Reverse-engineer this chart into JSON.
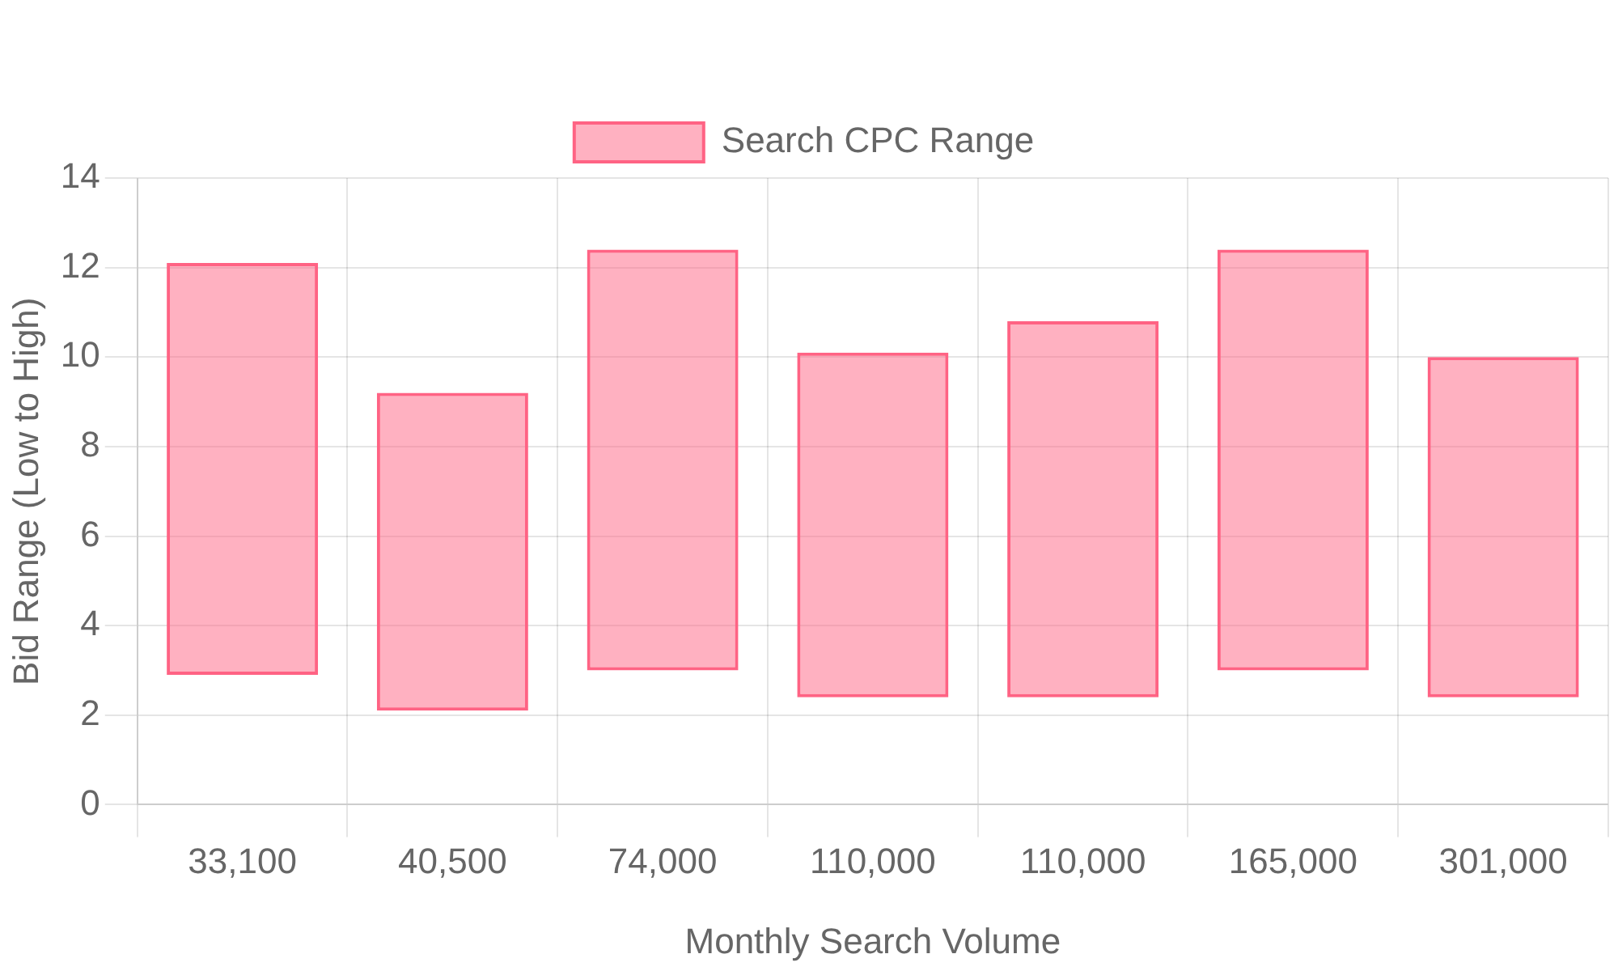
{
  "chart_data": {
    "type": "bar",
    "xlabel": "Monthly Search Volume",
    "ylabel": "Bid Range (Low to High)",
    "categories": [
      "33,100",
      "40,500",
      "74,000",
      "110,000",
      "110,000",
      "165,000",
      "301,000"
    ],
    "series": [
      {
        "name": "Search CPC Range",
        "color": "#ff6384",
        "base": [
          2.9,
          2.1,
          3.0,
          2.4,
          2.4,
          3.0,
          2.4
        ],
        "values": [
          9.2,
          7.1,
          9.4,
          7.7,
          8.4,
          9.4,
          7.6
        ]
      }
    ],
    "ylim": [
      0,
      14
    ],
    "yticks": [
      0,
      2,
      4,
      6,
      8,
      10,
      12,
      14
    ],
    "grid": true,
    "legend": "top"
  }
}
